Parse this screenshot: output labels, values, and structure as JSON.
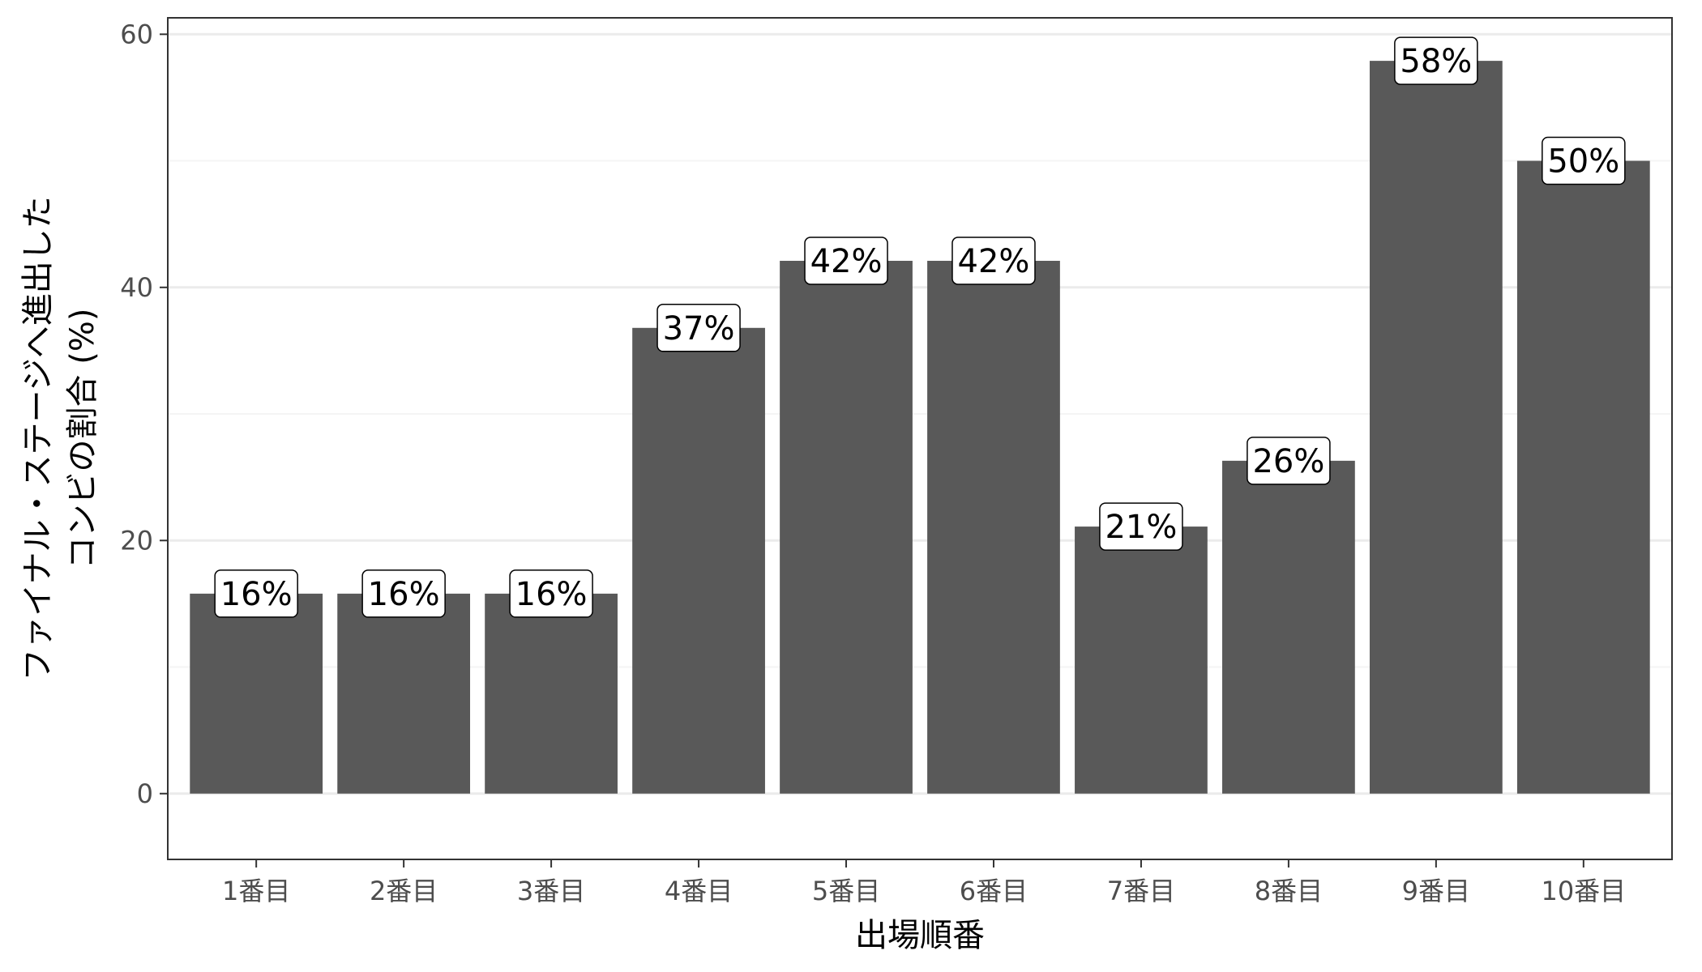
{
  "chart_data": {
    "type": "bar",
    "categories": [
      "1番目",
      "2番目",
      "3番目",
      "4番目",
      "5番目",
      "6番目",
      "7番目",
      "8番目",
      "9番目",
      "10番目"
    ],
    "values": [
      15.8,
      15.8,
      15.8,
      36.8,
      42.1,
      42.1,
      21.1,
      26.3,
      57.9,
      50.0
    ],
    "data_labels": [
      "16%",
      "16%",
      "16%",
      "37%",
      "42%",
      "42%",
      "21%",
      "26%",
      "58%",
      "50%"
    ],
    "title": "",
    "xlabel": "出場順番",
    "ylabel_lines": [
      "ファイナル・ステージへ進出した",
      "コンビの割合 (%)"
    ],
    "ylim": [
      -5.2,
      61.3
    ],
    "yticks": [
      0,
      20,
      40,
      60
    ],
    "grid": true,
    "legend": "none",
    "colors": {
      "bar": "#595959",
      "grid_major": "#ebebeb",
      "grid_minor": "#f4f4f4",
      "panel_border": "#333333",
      "label_fill": "#ffffff",
      "label_border": "#000000"
    }
  }
}
